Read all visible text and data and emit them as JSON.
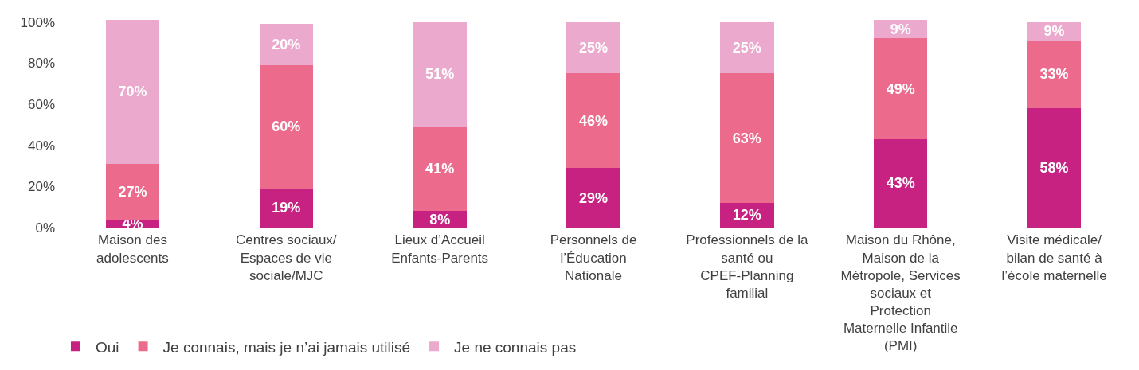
{
  "chart_data": {
    "type": "bar",
    "stacked": true,
    "legend": "bottom left",
    "categories": [
      "Maison des adolescents",
      "Centres sociaux/ Espaces de vie sociale/MJC",
      "Lieux d’Accueil Enfants-Parents",
      "Personnels de l’Éducation Nationale",
      "Professionnels de la santé ou CPEF-Planning familial",
      "Maison du Rhône, Maison de la Métropole, Services sociaux et Protection Maternelle Infantile (PMI)",
      "Visite médicale/ bilan de santé à l’école maternelle"
    ],
    "series": [
      {
        "name": "Oui",
        "color": "#c72282",
        "values": [
          4,
          19,
          8,
          29,
          12,
          43,
          58
        ],
        "value_labels": [
          "4%",
          "19%",
          "8%",
          "29%",
          "12%",
          "43%",
          "58%"
        ]
      },
      {
        "name": "Je connais, mais je n’ai jamais utilisé",
        "color": "#ec6b8d",
        "values": [
          27,
          60,
          41,
          46,
          63,
          49,
          33
        ],
        "value_labels": [
          "27%",
          "60%",
          "41%",
          "46%",
          "63%",
          "49%",
          "33%"
        ]
      },
      {
        "name": "Je ne connais pas",
        "color": "#eba9cd",
        "values": [
          70,
          20,
          51,
          25,
          25,
          9,
          9
        ],
        "value_labels": [
          "70%",
          "20%",
          "51%",
          "25%",
          "25%",
          "9%",
          "9%"
        ]
      }
    ],
    "ylim": [
      0,
      101
    ],
    "yticks": [
      {
        "value": 0,
        "label": "0%"
      },
      {
        "value": 20,
        "label": "20%"
      },
      {
        "value": 40,
        "label": "40%"
      },
      {
        "value": 60,
        "label": "60%"
      },
      {
        "value": 80,
        "label": "80%"
      },
      {
        "value": 100,
        "label": "100%"
      }
    ]
  }
}
